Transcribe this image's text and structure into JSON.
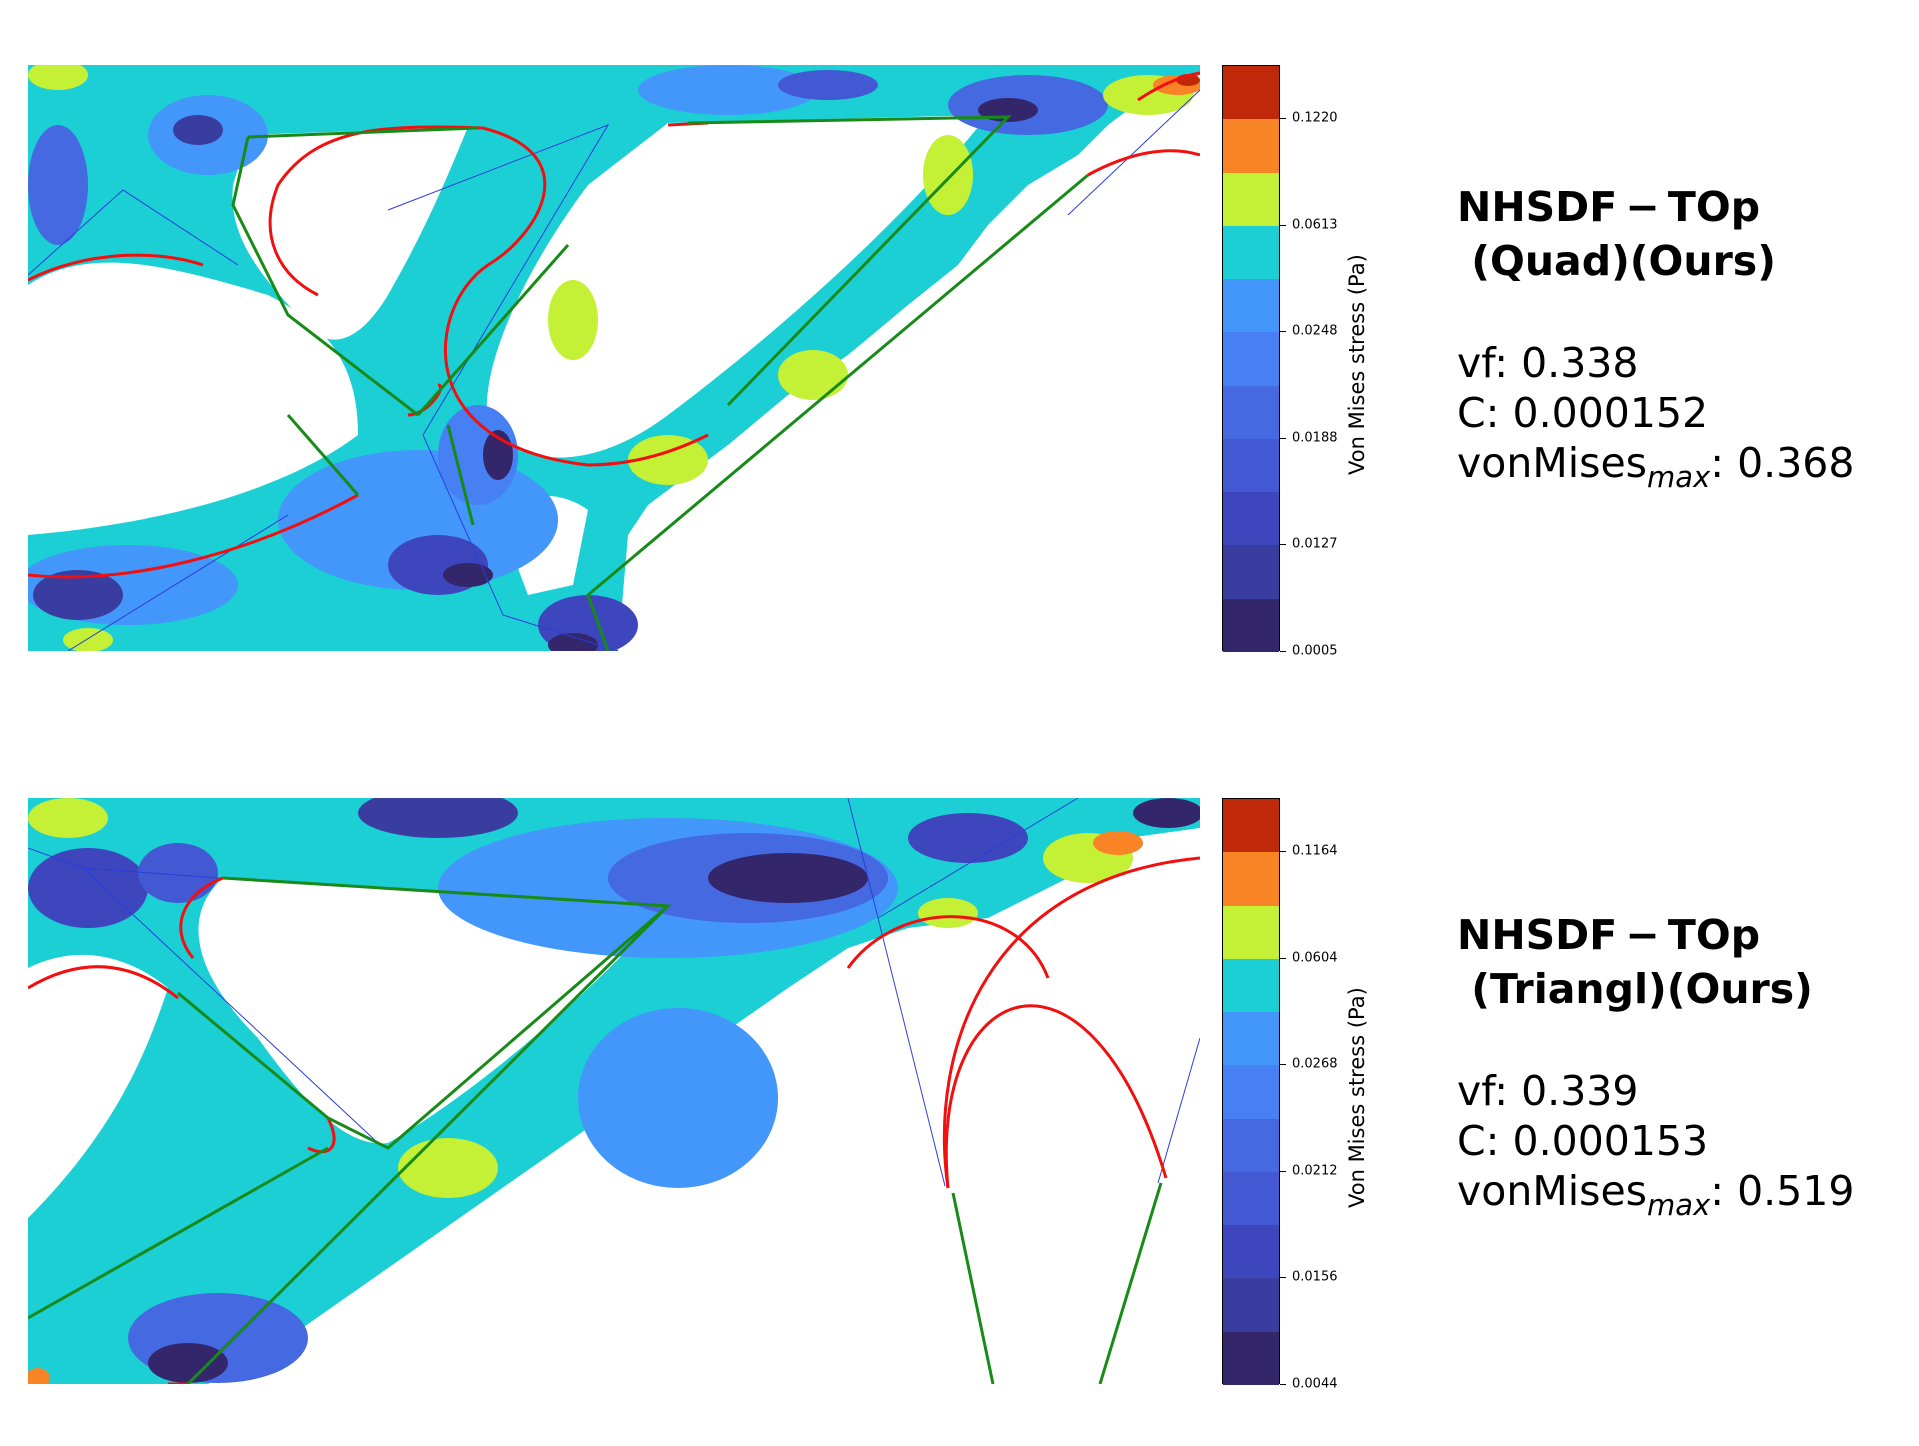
{
  "chart_data": [
    {
      "type": "heatmap",
      "colorbar_label": "Von Mises stress (Pa)",
      "colorbar_ticks": [
        "0.1220",
        "0.0613",
        "0.0248",
        "0.0188",
        "0.0127",
        "0.0005"
      ],
      "colorbar_colors": [
        "#c0280a",
        "#f98426",
        "#c4f135",
        "#1bcfd4",
        "#4396fa",
        "#4680f2",
        "#4469e0",
        "#4259d3",
        "#3e46bd",
        "#3a3da0",
        "#33266a"
      ],
      "title": "NHSDF − TOp\n (Quad)(Ours)",
      "stats": [
        {
          "label": "vf: ",
          "value": "0.338"
        },
        {
          "label": "C: ",
          "value": "0.000152"
        },
        {
          "label": "vonMises",
          "sub": "max",
          "sep": ": ",
          "value": "0.368"
        }
      ]
    },
    {
      "type": "heatmap",
      "colorbar_label": "Von Mises stress (Pa)",
      "colorbar_ticks": [
        "0.1164",
        "0.0604",
        "0.0268",
        "0.0212",
        "0.0156",
        "0.0044"
      ],
      "colorbar_colors": [
        "#c0280a",
        "#f98426",
        "#c4f135",
        "#1bcfd4",
        "#4396fa",
        "#4680f2",
        "#4469e0",
        "#4259d3",
        "#3e46bd",
        "#3a3da0",
        "#33266a"
      ],
      "title": "NHSDF − TOp\n (Triangl)(Ours)",
      "stats": [
        {
          "label": "vf: ",
          "value": "0.339"
        },
        {
          "label": "C: ",
          "value": "0.000153"
        },
        {
          "label": "vonMises",
          "sub": "max",
          "sep": ": ",
          "value": "0.519"
        }
      ]
    }
  ]
}
